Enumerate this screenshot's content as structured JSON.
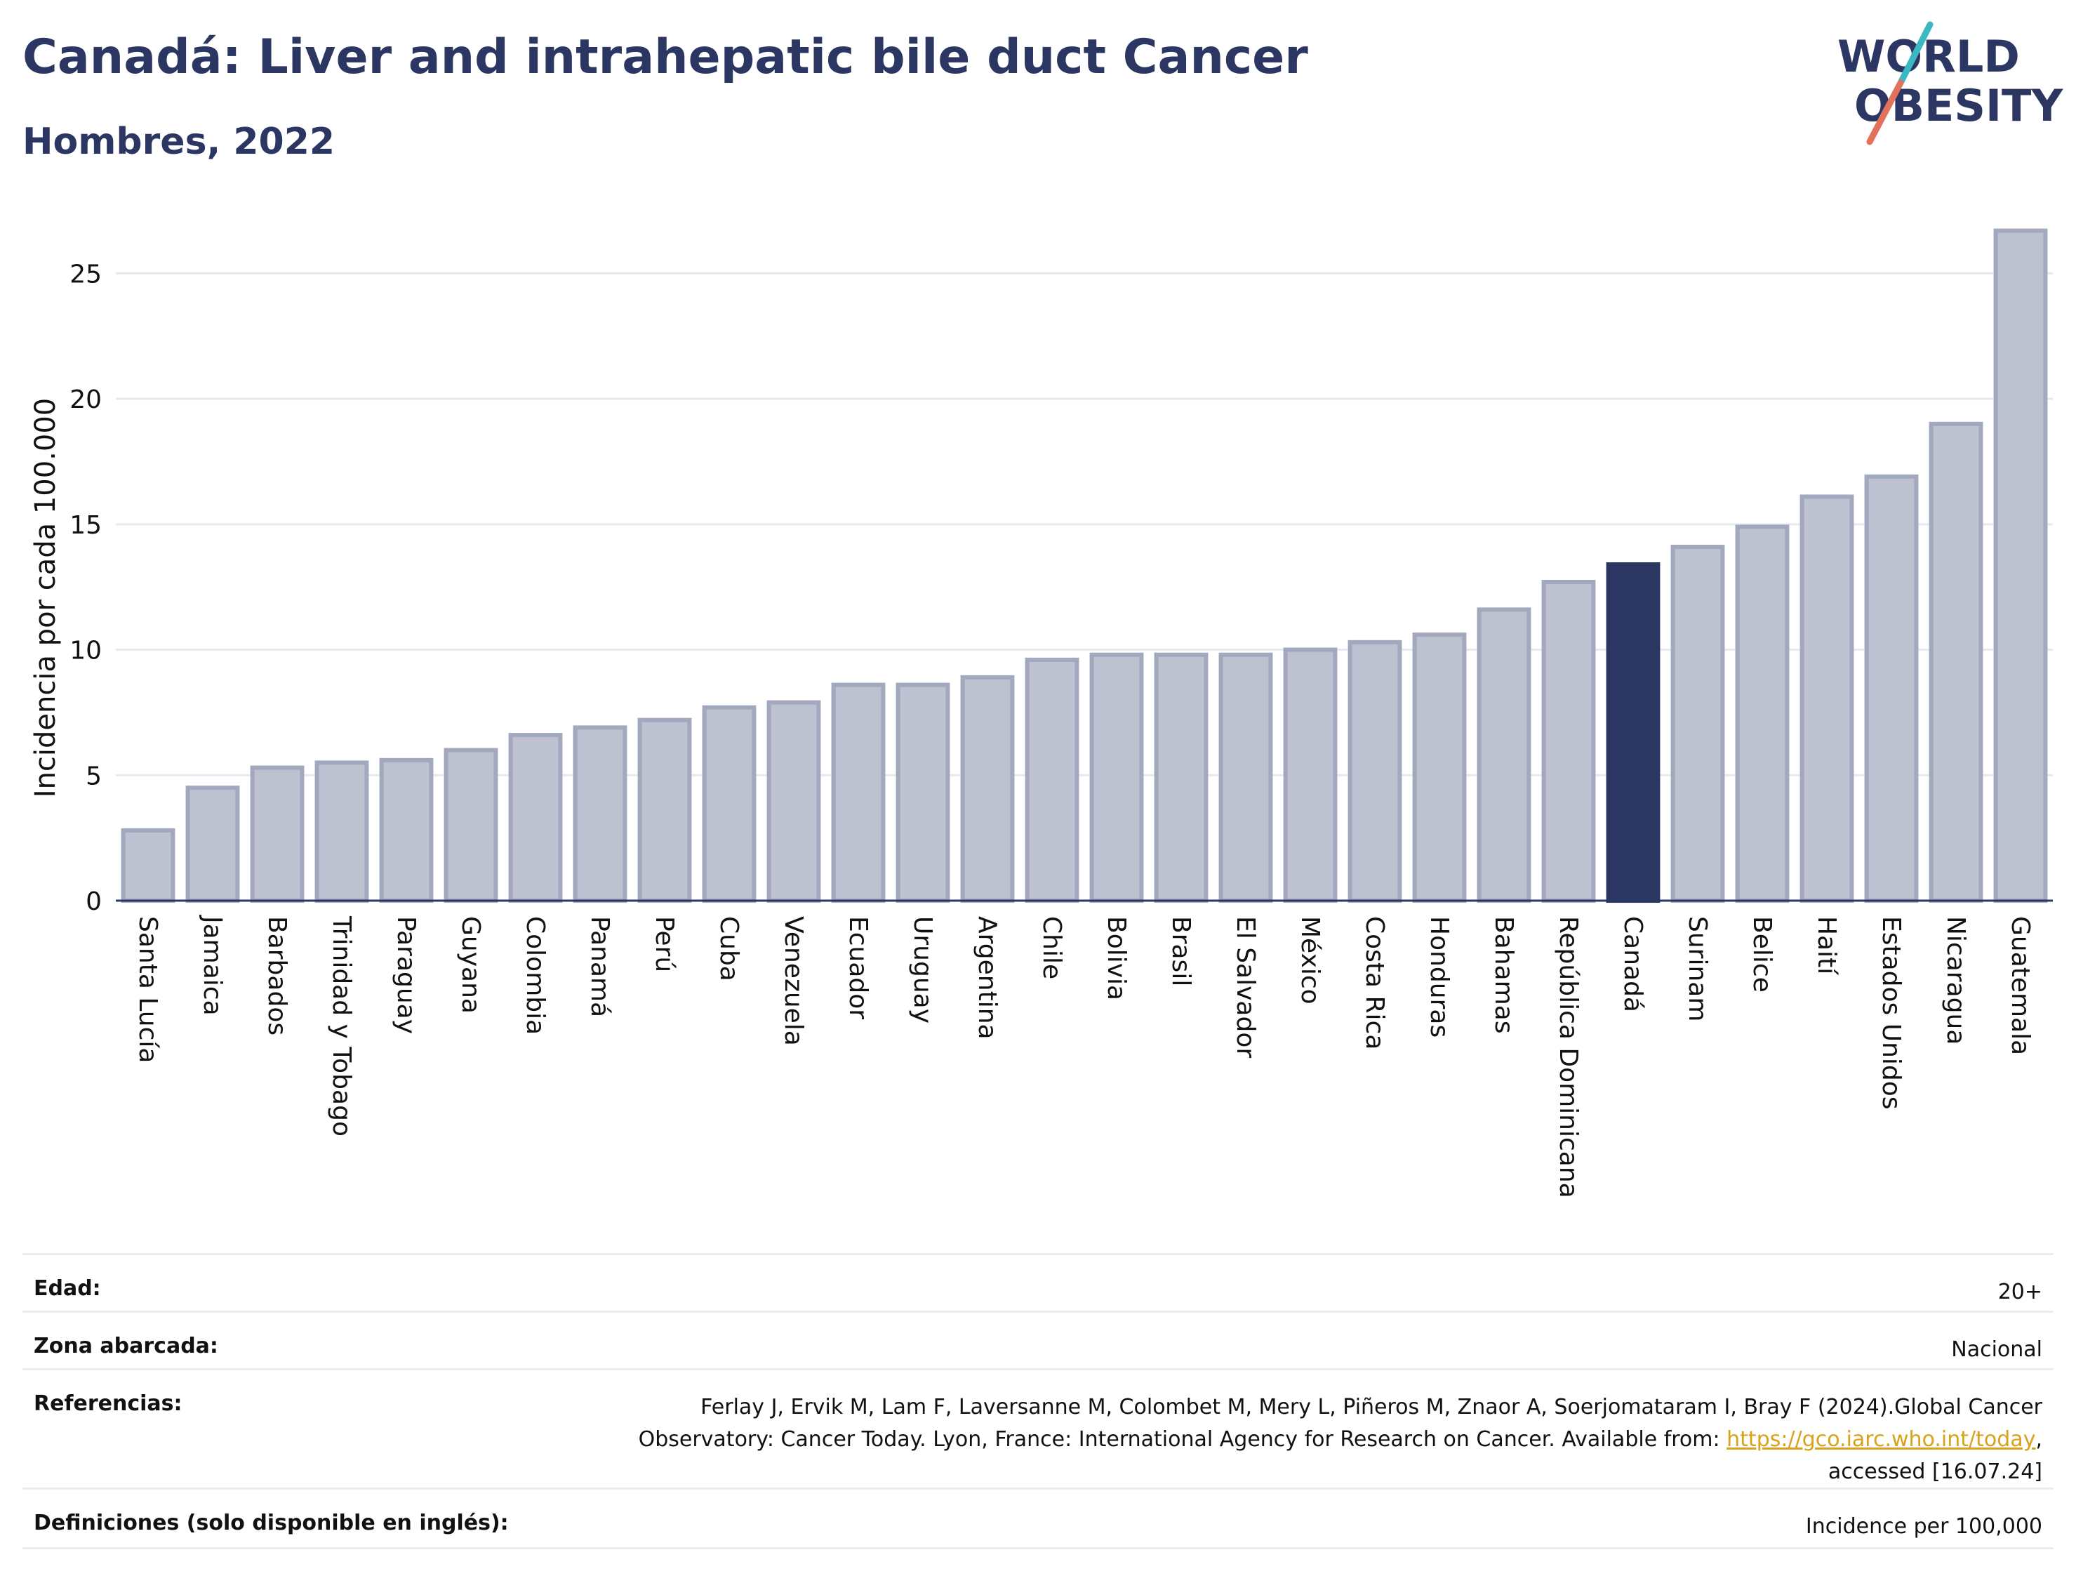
{
  "header": {
    "title": "Canadá: Liver and intrahepatic bile duct Cancer",
    "subtitle": "Hombres, 2022"
  },
  "logo": {
    "line1": "WORLD",
    "line2": "OBESITY"
  },
  "colors": {
    "bar": "#bec2d0",
    "bar_edge": "#a2a8bd",
    "highlight": "#2b3663",
    "grid": "#e6eaf0",
    "text": "#2b3663"
  },
  "chart_data": {
    "type": "bar",
    "ylabel": "Incidencia por cada 100.000",
    "ylim": [
      0,
      27.5
    ],
    "yticks": [
      0,
      5,
      10,
      15,
      20,
      25
    ],
    "grid": true,
    "highlight": "Canadá",
    "categories": [
      "Santa Lucía",
      "Jamaica",
      "Barbados",
      "Trinidad y Tobago",
      "Paraguay",
      "Guyana",
      "Colombia",
      "Panamá",
      "Perú",
      "Cuba",
      "Venezuela",
      "Ecuador",
      "Uruguay",
      "Argentina",
      "Chile",
      "Bolivia",
      "Brasil",
      "El Salvador",
      "México",
      "Costa Rica",
      "Honduras",
      "Bahamas",
      "República Dominicana",
      "Canadá",
      "Surinam",
      "Belice",
      "Haití",
      "Estados Unidos",
      "Nicaragua",
      "Guatemala"
    ],
    "values": [
      2.8,
      4.5,
      5.3,
      5.5,
      5.6,
      6.0,
      6.6,
      6.9,
      7.2,
      7.7,
      7.9,
      8.6,
      8.6,
      8.9,
      9.6,
      9.8,
      9.8,
      9.8,
      10.0,
      10.3,
      10.6,
      11.6,
      12.7,
      13.4,
      14.1,
      14.9,
      16.1,
      16.9,
      19.0,
      26.7
    ]
  },
  "meta": {
    "age_label": "Edad:",
    "age_value": "20+",
    "area_label": "Zona abarcada:",
    "area_value": "Nacional",
    "refs_label": "Referencias:",
    "refs_line1": "Ferlay J, Ervik M, Lam F, Laversanne M, Colombet M, Mery L, Piñeros M, Znaor A, Soerjomataram I, Bray F (2024).Global Cancer",
    "refs_line2": "Observatory: Cancer Today. Lyon, France: International Agency for Research on Cancer. Available from: ",
    "refs_link": "https://gco.iarc.who.int/today",
    "refs_line2_end": ",",
    "refs_line3": "accessed [16.07.24]",
    "defs_label": "Definiciones (solo disponible en inglés):",
    "defs_value": "Incidence per 100,000"
  }
}
